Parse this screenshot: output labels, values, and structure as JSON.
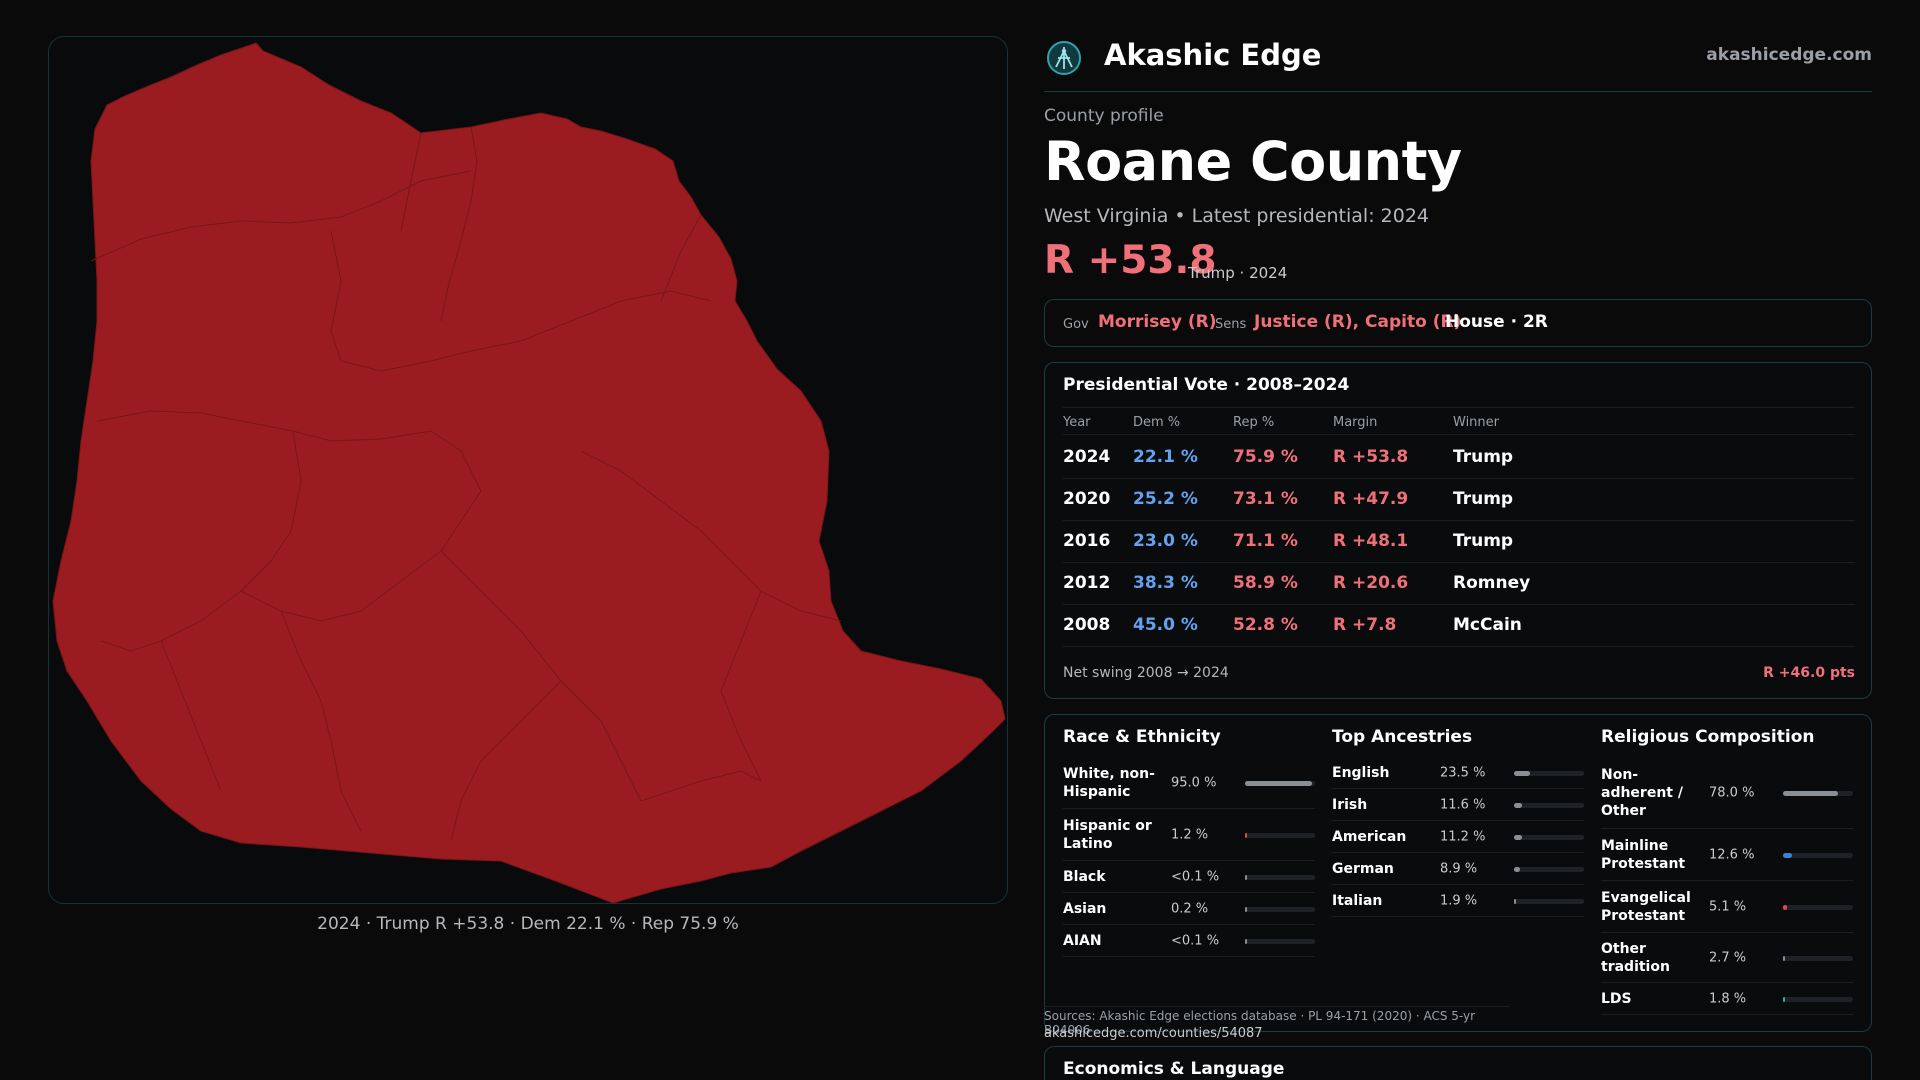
{
  "map": {
    "caption": "2024 · Trump R +53.8 · Dem 22.1 % · Rep 75.9 %",
    "fill_color": "#9b1c20",
    "line_color": "#7a1518"
  },
  "brand": {
    "name": "Akashic Edge",
    "url": "akashicedge.com",
    "logo_icon": "akashic-edge-logo"
  },
  "profile": {
    "label": "County profile",
    "title": "Roane County",
    "subtitle": "West Virginia • Latest presidential: 2024",
    "margin": "R +53.8",
    "margin_note": "Trump · 2024"
  },
  "officials": {
    "gov_label": "Gov",
    "gov": "Morrisey (R)",
    "sens_label": "Sens",
    "sens": "Justice (R), Capito (R)",
    "house": "House · 2R"
  },
  "presidential": {
    "title": "Presidential Vote · 2008–2024",
    "headers": [
      "Year",
      "Dem %",
      "Rep %",
      "Margin",
      "Winner"
    ],
    "rows": [
      {
        "year": "2024",
        "dem": "22.1 %",
        "rep": "75.9 %",
        "margin": "R +53.8",
        "winner": "Trump"
      },
      {
        "year": "2020",
        "dem": "25.2 %",
        "rep": "73.1 %",
        "margin": "R +47.9",
        "winner": "Trump"
      },
      {
        "year": "2016",
        "dem": "23.0 %",
        "rep": "71.1 %",
        "margin": "R +48.1",
        "winner": "Trump"
      },
      {
        "year": "2012",
        "dem": "38.3 %",
        "rep": "58.9 %",
        "margin": "R +20.6",
        "winner": "Romney"
      },
      {
        "year": "2008",
        "dem": "45.0 %",
        "rep": "52.8 %",
        "margin": "R +7.8",
        "winner": "McCain"
      }
    ],
    "swing_label": "Net swing 2008 → 2024",
    "swing_value": "R +46.0 pts"
  },
  "race": {
    "title": "Race & Ethnicity",
    "rows": [
      {
        "label": "White, non-\nHispanic",
        "value": "95.0 %",
        "pct": 95.0,
        "color": "#8a8f96"
      },
      {
        "label": "Hispanic or\nLatino",
        "value": "1.2 %",
        "pct": 1.2,
        "color": "#e0474f"
      },
      {
        "label": "Black",
        "value": "<0.1 %",
        "pct": 0.1,
        "color": "#8a8f96"
      },
      {
        "label": "Asian",
        "value": "0.2 %",
        "pct": 0.2,
        "color": "#8a8f96"
      },
      {
        "label": "AIAN",
        "value": "<0.1 %",
        "pct": 0.1,
        "color": "#8a8f96"
      }
    ]
  },
  "ancestry": {
    "title": "Top Ancestries",
    "rows": [
      {
        "label": "English",
        "value": "23.5 %",
        "pct": 23.5,
        "color": "#8a8f96"
      },
      {
        "label": "Irish",
        "value": "11.6 %",
        "pct": 11.6,
        "color": "#8a8f96"
      },
      {
        "label": "American",
        "value": "11.2 %",
        "pct": 11.2,
        "color": "#8a8f96"
      },
      {
        "label": "German",
        "value": "8.9 %",
        "pct": 8.9,
        "color": "#8a8f96"
      },
      {
        "label": "Italian",
        "value": "1.9 %",
        "pct": 1.9,
        "color": "#8a8f96"
      }
    ]
  },
  "religion": {
    "title": "Religious Composition",
    "rows": [
      {
        "label": "Non-\nadherent /\nOther",
        "value": "78.0 %",
        "pct": 78.0,
        "color": "#8a8f96"
      },
      {
        "label": "Mainline\nProtestant",
        "value": "12.6 %",
        "pct": 12.6,
        "color": "#3d7fd9"
      },
      {
        "label": "Evangelical\nProtestant",
        "value": "5.1 %",
        "pct": 5.1,
        "color": "#e0474f"
      },
      {
        "label": "Other\ntradition",
        "value": "2.7 %",
        "pct": 2.7,
        "color": "#8a8f96"
      },
      {
        "label": "LDS",
        "value": "1.8 %",
        "pct": 1.8,
        "color": "#2fb0a0"
      }
    ]
  },
  "sources": {
    "text": "Sources: Akashic Edge elections database · PL 94-171 (2020) · ACS 5-yr B04006",
    "url": "akashicedge.com/counties/54087"
  },
  "economics": {
    "title": "Economics & Language"
  }
}
